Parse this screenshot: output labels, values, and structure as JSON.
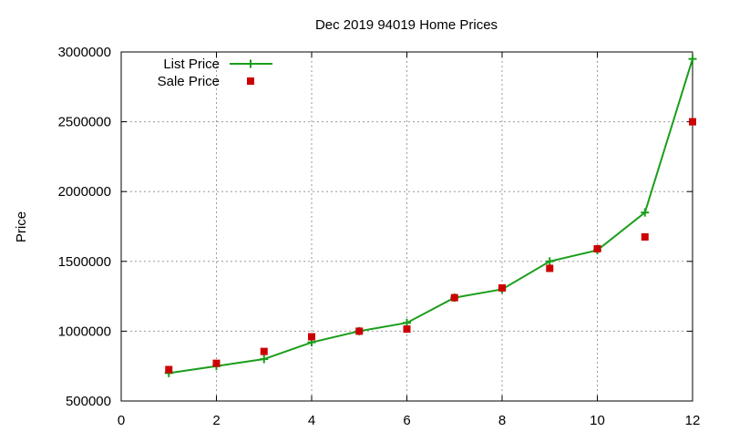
{
  "chart_data": {
    "type": "line",
    "title": "Dec 2019 94019 Home Prices",
    "xlabel": "",
    "ylabel": "Price",
    "xlim": [
      0,
      12
    ],
    "ylim": [
      500000,
      3000000
    ],
    "x_ticks": [
      0,
      2,
      4,
      6,
      8,
      10,
      12
    ],
    "y_ticks": [
      500000,
      1000000,
      1500000,
      2000000,
      2500000,
      3000000
    ],
    "grid": true,
    "legend_position": "top-left",
    "series": [
      {
        "name": "List Price",
        "style": "line-plus",
        "color": "#1a9e1a",
        "x": [
          1,
          2,
          3,
          4,
          5,
          6,
          7,
          8,
          9,
          10,
          11,
          12
        ],
        "y": [
          700000,
          750000,
          800000,
          920000,
          1000000,
          1060000,
          1240000,
          1300000,
          1500000,
          1580000,
          1850000,
          2950000
        ]
      },
      {
        "name": "Sale Price",
        "style": "square-points",
        "color": "#cc0000",
        "x": [
          1,
          2,
          3,
          4,
          5,
          6,
          7,
          8,
          9,
          10,
          11,
          12
        ],
        "y": [
          725000,
          770000,
          855000,
          960000,
          1000000,
          1015000,
          1240000,
          1310000,
          1450000,
          1590000,
          1675000,
          2500000
        ]
      }
    ]
  }
}
